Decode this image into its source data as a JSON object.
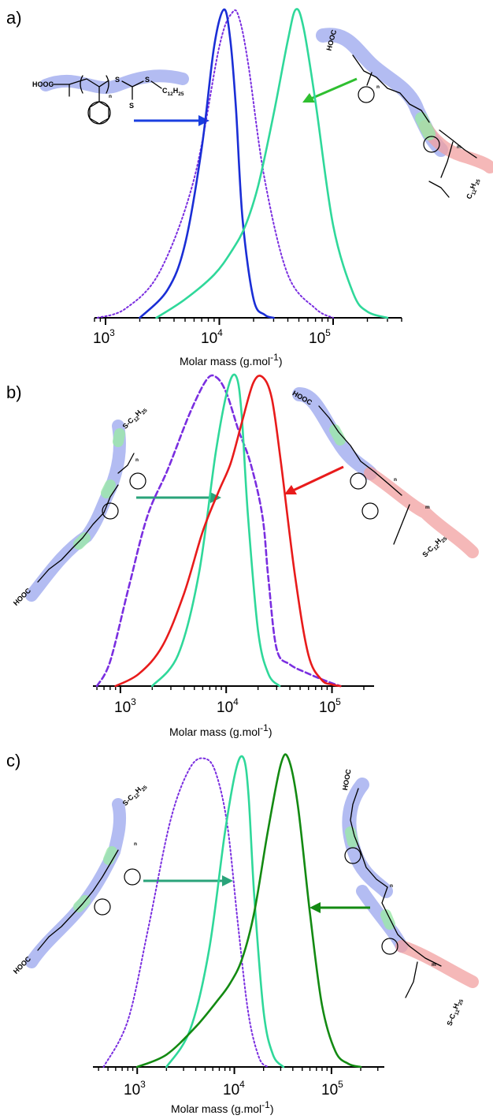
{
  "figure": {
    "panels": [
      {
        "label": "a)",
        "xlabel": "Molar mass (g.mol-1)",
        "xlabel_base": "Molar mass (g.mol",
        "xlabel_sup": "-1",
        "xlabel_end": ")",
        "xscale": "log",
        "xlim": [
          800,
          400000
        ],
        "ticks": [
          {
            "base": "10",
            "exp": "3",
            "value": 1000
          },
          {
            "base": "10",
            "exp": "4",
            "value": 10000
          },
          {
            "base": "10",
            "exp": "5",
            "value": 100000
          }
        ],
        "polymers": [
          {
            "end_group_left": "HOOC",
            "repeat_label": "n",
            "end_group_right": "S",
            "thio": "S",
            "alkyl": "C12H25",
            "alkyl_base": "C",
            "alkyl_sub1": "12",
            "alkyl_mid": "H",
            "alkyl_sub2": "25"
          },
          {
            "end_group_left": "HOOC",
            "repeat_label_1": "n",
            "repeat_label_2": "m",
            "alkyl_base": "C",
            "alkyl_sub1": "12",
            "alkyl_mid": "H",
            "alkyl_sub2": "25"
          }
        ]
      },
      {
        "label": "b)",
        "xlabel_base": "Molar mass (g.mol",
        "xlabel_sup": "-1",
        "xlabel_end": ")",
        "xscale": "log",
        "xlim": [
          550,
          250000
        ],
        "ticks": [
          {
            "base": "10",
            "exp": "3",
            "value": 1000
          },
          {
            "base": "10",
            "exp": "4",
            "value": 10000
          },
          {
            "base": "10",
            "exp": "5",
            "value": 100000
          }
        ],
        "polymers": [
          {
            "end_group_left": "HOOC",
            "repeat_label": "n",
            "alkyl_base": "S-C",
            "alkyl_sub1": "12",
            "alkyl_mid": "H",
            "alkyl_sub2": "25"
          },
          {
            "end_group_left": "HOOC",
            "repeat_label_1": "n",
            "repeat_label_2": "m",
            "alkyl_base": "S-C",
            "alkyl_sub1": "12",
            "alkyl_mid": "H",
            "alkyl_sub2": "25"
          }
        ]
      },
      {
        "label": "c)",
        "xlabel_base": "Molar mass (g.mol",
        "xlabel_sup": "-1",
        "xlabel_end": ")",
        "xscale": "log",
        "xlim": [
          350,
          350000
        ],
        "ticks": [
          {
            "base": "10",
            "exp": "3",
            "value": 1000
          },
          {
            "base": "10",
            "exp": "4",
            "value": 10000
          },
          {
            "base": "10",
            "exp": "5",
            "value": 100000
          }
        ],
        "polymers": [
          {
            "end_group_left": "HOOC",
            "repeat_label": "n",
            "alkyl_base": "S-C",
            "alkyl_sub1": "12",
            "alkyl_mid": "H",
            "alkyl_sub2": "25"
          },
          {
            "end_group_left": "HOOC",
            "repeat_label_1": "n",
            "repeat_label_2": "m",
            "alkyl_base": "S-C",
            "alkyl_sub1": "12",
            "alkyl_mid": "H",
            "alkyl_sub2": "25"
          }
        ]
      }
    ]
  },
  "chart_data": [
    {
      "type": "line",
      "xscale": "log",
      "xlim": [
        800,
        400000
      ],
      "ylim": [
        0,
        1
      ],
      "xlabel": "Molar mass (g.mol-1)",
      "ylabel": "",
      "grid": false,
      "series": [
        {
          "color": "#7a2ee0",
          "style": "dotted",
          "x": [
            850,
            1500,
            3000,
            6000,
            10000,
            13000,
            15000,
            18000,
            25000,
            40000,
            70000,
            100000
          ],
          "y": [
            0.0,
            0.03,
            0.15,
            0.45,
            0.88,
            0.99,
            0.97,
            0.82,
            0.45,
            0.14,
            0.03,
            0.0
          ]
        },
        {
          "color": "#1a2ed6",
          "style": "solid",
          "x": [
            2000,
            3500,
            5000,
            7000,
            9000,
            11000,
            12500,
            14000,
            16000,
            20000,
            25000,
            30000
          ],
          "y": [
            0.0,
            0.09,
            0.24,
            0.55,
            0.88,
            1.0,
            0.9,
            0.68,
            0.32,
            0.06,
            0.01,
            0.0
          ]
        },
        {
          "color": "#2fd89a",
          "style": "solid",
          "x": [
            2800,
            5000,
            9000,
            13000,
            17000,
            22000,
            30000,
            40000,
            47000,
            55000,
            70000,
            100000,
            150000,
            200000,
            300000
          ],
          "y": [
            0.0,
            0.06,
            0.14,
            0.22,
            0.3,
            0.43,
            0.66,
            0.9,
            1.0,
            0.94,
            0.7,
            0.3,
            0.08,
            0.02,
            0.0
          ]
        }
      ]
    },
    {
      "type": "line",
      "xscale": "log",
      "xlim": [
        550,
        250000
      ],
      "ylim": [
        0,
        1
      ],
      "xlabel": "Molar mass (g.mol-1)",
      "ylabel": "",
      "grid": false,
      "series": [
        {
          "color": "#7a2ee0",
          "style": "dashed",
          "x": [
            600,
            800,
            1200,
            1800,
            2800,
            4500,
            6500,
            8000,
            10000,
            13000,
            17000,
            22000,
            25000,
            30000,
            40000,
            60000,
            90000,
            120000
          ],
          "y": [
            0.0,
            0.08,
            0.32,
            0.55,
            0.7,
            0.88,
            0.99,
            1.0,
            0.95,
            0.83,
            0.72,
            0.55,
            0.35,
            0.12,
            0.07,
            0.04,
            0.015,
            0.0
          ]
        },
        {
          "color": "#2fd89a",
          "style": "solid",
          "x": [
            2000,
            3500,
            5500,
            8000,
            10500,
            12500,
            14000,
            16000,
            20000,
            25000,
            32000
          ],
          "y": [
            0.0,
            0.1,
            0.36,
            0.76,
            0.97,
            1.0,
            0.88,
            0.56,
            0.18,
            0.04,
            0.0
          ]
        },
        {
          "color": "#e81b1b",
          "style": "solid",
          "x": [
            900,
            1500,
            2500,
            4000,
            6000,
            8500,
            11000,
            14000,
            18000,
            22000,
            27000,
            33000,
            45000,
            60000,
            80000,
            100000,
            120000
          ],
          "y": [
            0.0,
            0.04,
            0.13,
            0.3,
            0.5,
            0.63,
            0.72,
            0.85,
            0.98,
            1.0,
            0.93,
            0.72,
            0.35,
            0.1,
            0.02,
            0.005,
            0.0
          ]
        }
      ]
    },
    {
      "type": "line",
      "xscale": "log",
      "xlim": [
        350,
        350000
      ],
      "ylim": [
        0,
        1
      ],
      "xlabel": "Molar mass (g.mol-1)",
      "ylabel": "",
      "grid": false,
      "series": [
        {
          "color": "#7a2ee0",
          "style": "dotted",
          "x": [
            450,
            800,
            1300,
            2200,
            3500,
            5000,
            6500,
            8500,
            11000,
            14000,
            18000,
            22000
          ],
          "y": [
            0.0,
            0.15,
            0.45,
            0.8,
            0.97,
            1.0,
            0.95,
            0.78,
            0.45,
            0.17,
            0.03,
            0.0
          ]
        },
        {
          "color": "#2fd89a",
          "style": "solid",
          "x": [
            2000,
            3500,
            5500,
            8000,
            10500,
            12500,
            14000,
            16000,
            20000,
            25000,
            32000
          ],
          "y": [
            0.0,
            0.12,
            0.38,
            0.76,
            0.97,
            1.0,
            0.88,
            0.56,
            0.18,
            0.04,
            0.0
          ]
        },
        {
          "color": "#138a12",
          "style": "solid",
          "x": [
            1000,
            2000,
            4000,
            6500,
            9000,
            12000,
            16000,
            22000,
            30000,
            36000,
            45000,
            60000,
            80000,
            110000,
            150000,
            200000
          ],
          "y": [
            0.0,
            0.04,
            0.13,
            0.21,
            0.27,
            0.35,
            0.5,
            0.76,
            0.98,
            1.0,
            0.85,
            0.5,
            0.2,
            0.05,
            0.01,
            0.0
          ]
        }
      ]
    }
  ]
}
